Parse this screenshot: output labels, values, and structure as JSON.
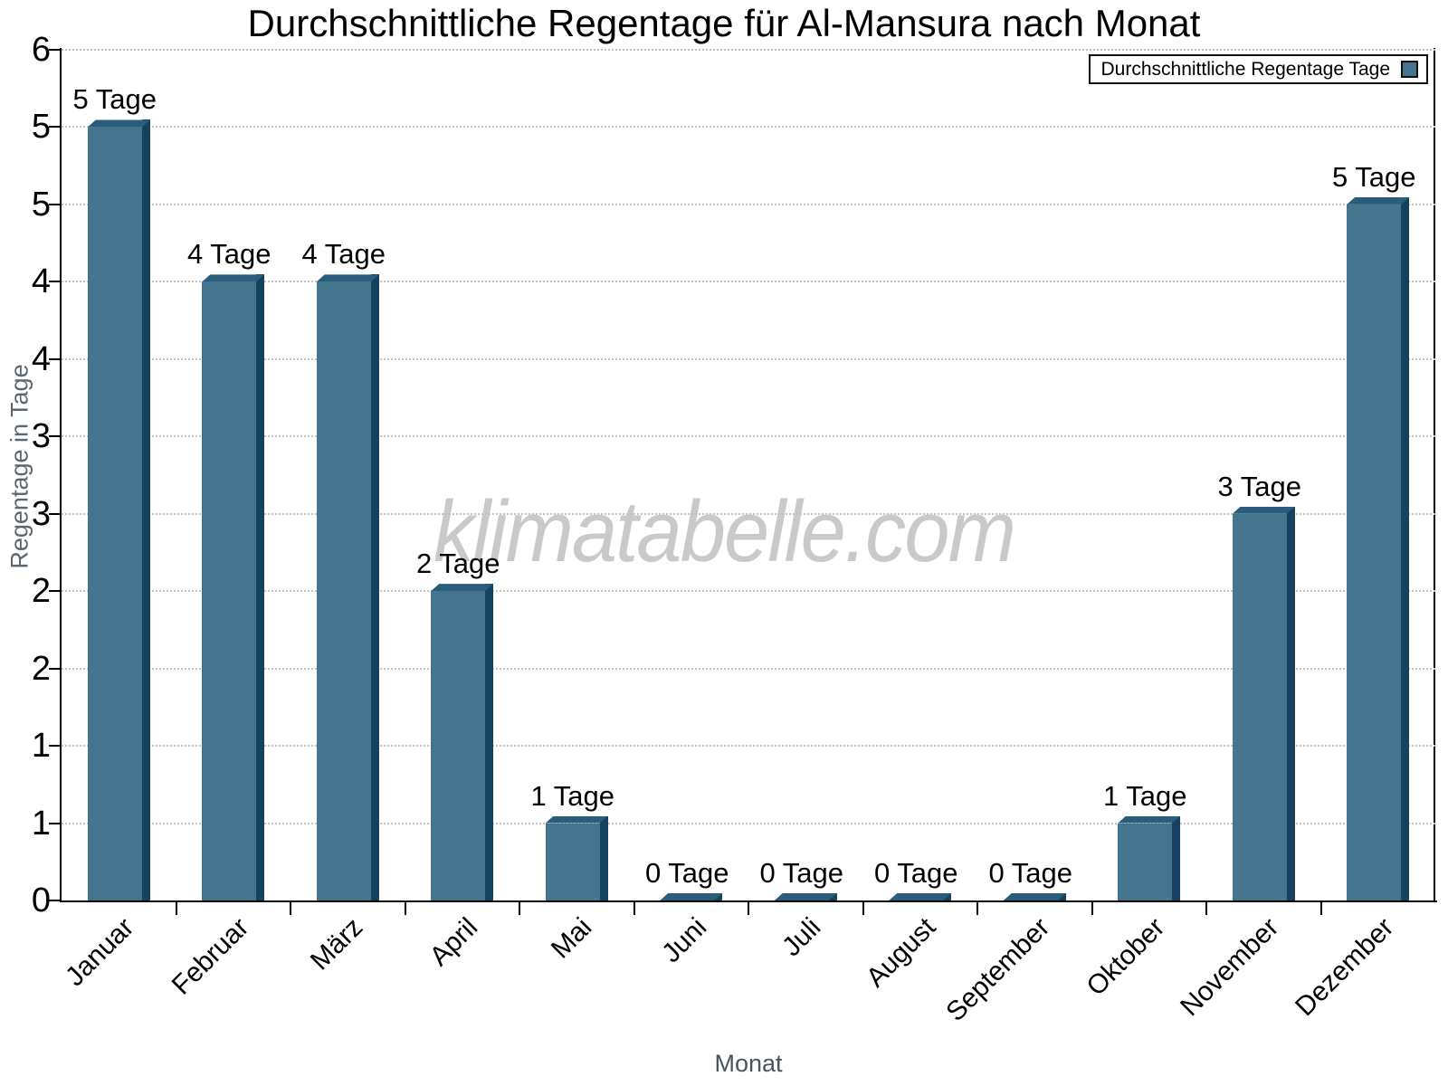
{
  "title": "Durchschnittliche Regentage für Al-Mansura nach Monat",
  "watermark": "klimatabelle.com",
  "legend": {
    "label": "Durchschnittliche Regentage Tage"
  },
  "axes": {
    "x_label": "Monat",
    "y_label": "Regentage in Tage",
    "y_tick_labels_bottom_to_top": [
      "0",
      "1",
      "1",
      "2",
      "2",
      "3",
      "3",
      "4",
      "4",
      "5",
      "5",
      "6"
    ],
    "y_min": 0,
    "y_max": 5.5,
    "y_tick_step": 0.5
  },
  "chart_data": {
    "type": "bar",
    "title": "Durchschnittliche Regentage für Al-Mansura nach Monat",
    "categories": [
      "Januar",
      "Februar",
      "März",
      "April",
      "Mai",
      "Juni",
      "Juli",
      "August",
      "September",
      "Oktober",
      "November",
      "Dezember"
    ],
    "values": [
      5,
      4,
      4,
      2,
      1,
      0,
      0,
      0,
      0,
      1,
      3,
      5
    ],
    "values_plotted": [
      5,
      4,
      4,
      2,
      0.5,
      0,
      0,
      0,
      0,
      0.5,
      2.5,
      4.5
    ],
    "bar_labels": [
      "5 Tage",
      "4 Tage",
      "4 Tage",
      "2 Tage",
      "1 Tage",
      "0 Tage",
      "0 Tage",
      "0 Tage",
      "0 Tage",
      "1 Tage",
      "3 Tage",
      "5 Tage"
    ],
    "xlabel": "Monat",
    "ylabel": "Regentage in Tage",
    "ylim": [
      0,
      5.5
    ],
    "grid": "horizontal-dotted",
    "legend": [
      "Durchschnittliche Regentage Tage"
    ],
    "legend_position": "top-right"
  },
  "colors": {
    "bar_front": "#45748f",
    "bar_side": "#14425f",
    "bar_top": "#2a5d7c",
    "gridline": "#c3c3c3",
    "axis": "#000000",
    "axis_title_text": "#5a6771",
    "watermark_text": "#c9c9c9",
    "title_text": "#000000"
  }
}
